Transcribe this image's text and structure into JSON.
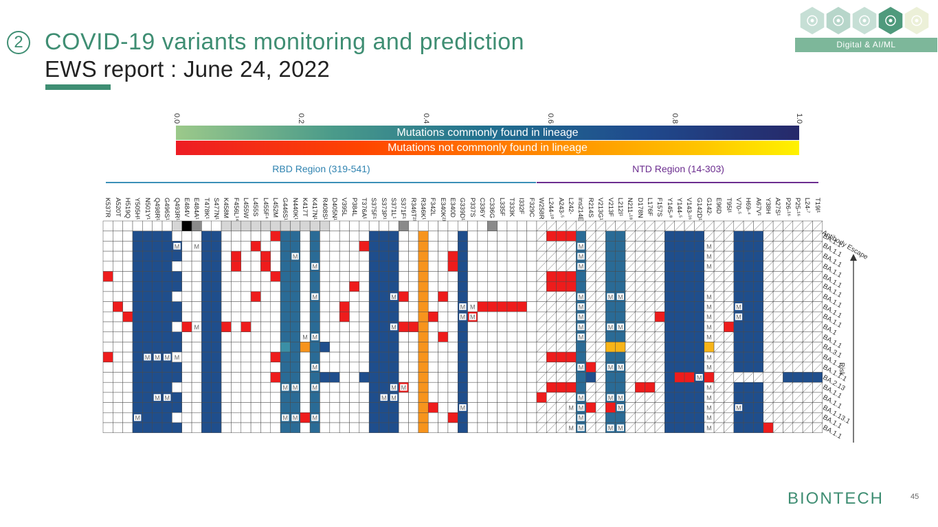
{
  "header": {
    "step": "2",
    "title": "COVID-19 variants monitoring and prediction",
    "subtitle": "EWS report : June 24, 2022",
    "badge": "Digital & AI/ML"
  },
  "hex_icons": [
    {
      "icon": "gear-search-icon",
      "color": "#c6dfd5"
    },
    {
      "icon": "search-icon",
      "color": "#b7d6ca"
    },
    {
      "icon": "list-gear-icon",
      "color": "#c6dfd5"
    },
    {
      "icon": "gear-network-icon",
      "color": "#4f9a7c"
    },
    {
      "icon": "settings-icon",
      "color": "#ecf0d8"
    }
  ],
  "colorbar": {
    "ticks": [
      "0.0",
      "0.2",
      "0.4",
      "0.6",
      "0.8",
      "1.0"
    ],
    "common_label": "Mutations commonly found in lineage",
    "uncommon_label": "Mutations not commonly found in lineage"
  },
  "regions": {
    "rbd": "RBD Region (319-541)",
    "ntd": "NTD Region (14-303)"
  },
  "mutations": [
    "K537R",
    "A520T",
    "H519Q",
    "Y505H¹",
    "N501Y¹",
    "Q498R¹",
    "G496S¹",
    "Q493R¹",
    "E484V",
    "E484A¹",
    "T478K¹",
    "S477N¹",
    "K458M",
    "F456L¹⁴",
    "L455W",
    "L455S",
    "L455F⁴",
    "L452M",
    "G446S¹",
    "N440K¹",
    "K417T",
    "K417N¹",
    "R408S¹",
    "D405N¹",
    "V395L",
    "P384L",
    "T376A¹",
    "S375F¹",
    "S373P¹",
    "S371L¹",
    "S371F¹",
    "R346T²³",
    "R346K¹",
    "F342L",
    "E340K²¹",
    "E340D",
    "G339D¹",
    "P337S",
    "C336Y",
    "C336G",
    "L335F",
    "T333K",
    "I332F",
    "F329C",
    "W258R",
    "L244-¹⁰",
    "A243-⁵",
    "L242-",
    "ins214EPE",
    "R214S",
    "V213G¹",
    "V213F",
    "L212I¹",
    "N211-¹⁸",
    "D178N",
    "L176F",
    "F157S",
    "Y145-⁸",
    "Y144-⁵",
    "V143-¹⁶",
    "G142D¹",
    "G142-",
    "E96D",
    "T95I¹",
    "V70-⁵",
    "H69-⁴",
    "A67V¹",
    "Y38H",
    "A27S¹",
    "P26-¹⁶",
    "P25-¹⁶",
    "L24-⁷",
    "T19I¹"
  ],
  "lineages": [
    "Antibody Escape",
    "BA.1.1",
    "BA.1.1",
    "BA.1.1",
    "BA.1.1",
    "BA.1.1",
    "BA.1.1",
    "BA.1.1",
    "BA.1.1",
    "BA.1.1",
    "BA.1",
    "BA.1.1",
    "BA.3.1",
    "BA.1.1",
    "BA.1.1.1",
    "BA.2.13",
    "BA.1.1",
    "BA.1.1",
    "BA.1.13.1",
    "BA.1.1",
    "BA.1.1"
  ],
  "axis": {
    "risk": "Risk"
  },
  "mark": "M",
  "footer": {
    "logo": "BIONTECH",
    "page": "45"
  }
}
